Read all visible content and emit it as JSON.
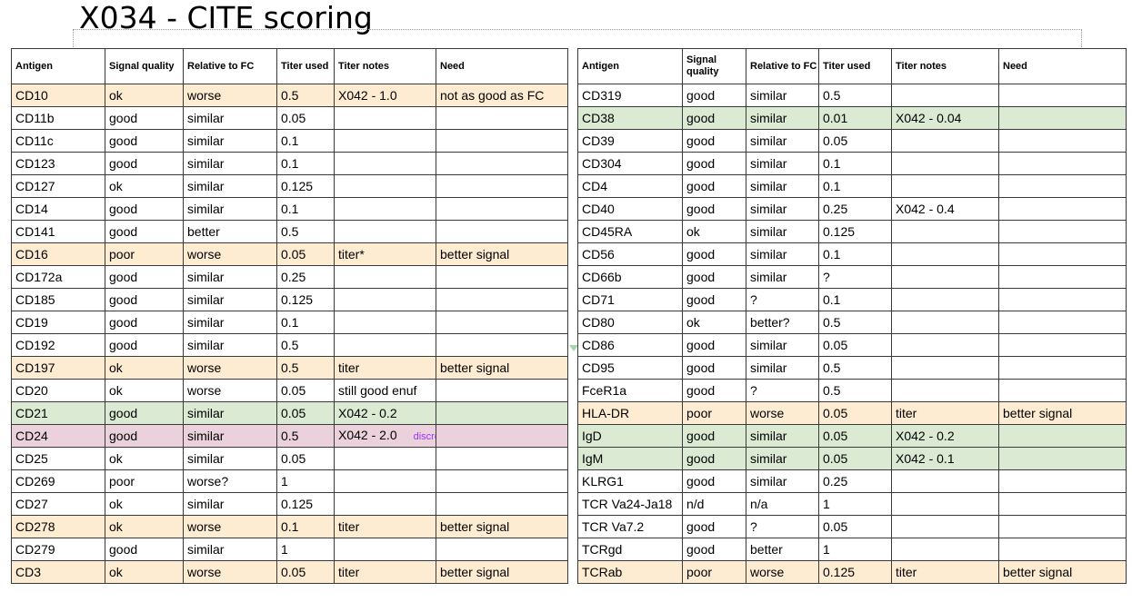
{
  "title": "X034 - CITE scoring",
  "left": {
    "headers": [
      "Antigen",
      "Signal quality",
      "Relative to FC",
      "Titer used",
      "Titer notes",
      "Need"
    ],
    "rows": [
      {
        "antigen": "CD10",
        "signal": "ok",
        "relative": "worse",
        "titer": "0.5",
        "notes": "X042 - 1.0",
        "need": "not as good as FC",
        "hl": "orange"
      },
      {
        "antigen": "CD11b",
        "signal": "good",
        "relative": "similar",
        "titer": "0.05",
        "notes": "",
        "need": "",
        "hl": ""
      },
      {
        "antigen": "CD11c",
        "signal": "good",
        "relative": "similar",
        "titer": "0.1",
        "notes": "",
        "need": "",
        "hl": ""
      },
      {
        "antigen": "CD123",
        "signal": "good",
        "relative": "similar",
        "titer": "0.1",
        "notes": "",
        "need": "",
        "hl": ""
      },
      {
        "antigen": "CD127",
        "signal": "ok",
        "relative": "similar",
        "titer": "0.125",
        "notes": "",
        "need": "",
        "hl": ""
      },
      {
        "antigen": "CD14",
        "signal": "good",
        "relative": "similar",
        "titer": "0.1",
        "notes": "",
        "need": "",
        "hl": ""
      },
      {
        "antigen": "CD141",
        "signal": "good",
        "relative": "better",
        "titer": "0.5",
        "notes": "",
        "need": "",
        "hl": ""
      },
      {
        "antigen": "CD16",
        "signal": "poor",
        "relative": "worse",
        "titer": "0.05",
        "notes": "titer*",
        "need": "better signal",
        "hl": "orange"
      },
      {
        "antigen": "CD172a",
        "signal": "good",
        "relative": "similar",
        "titer": "0.25",
        "notes": "",
        "need": "",
        "hl": ""
      },
      {
        "antigen": "CD185",
        "signal": "good",
        "relative": "similar",
        "titer": "0.125",
        "notes": "",
        "need": "",
        "hl": ""
      },
      {
        "antigen": "CD19",
        "signal": "good",
        "relative": "similar",
        "titer": "0.1",
        "notes": "",
        "need": "",
        "hl": ""
      },
      {
        "antigen": "CD192",
        "signal": "good",
        "relative": "similar",
        "titer": "0.5",
        "notes": "",
        "need": "",
        "hl": ""
      },
      {
        "antigen": "CD197",
        "signal": "ok",
        "relative": "worse",
        "titer": "0.5",
        "notes": "titer",
        "need": "better signal",
        "hl": "orange"
      },
      {
        "antigen": "CD20",
        "signal": "ok",
        "relative": "worse",
        "titer": "0.05",
        "notes": "still good enuf",
        "need": "",
        "hl": ""
      },
      {
        "antigen": "CD21",
        "signal": "good",
        "relative": "similar",
        "titer": "0.05",
        "notes": "X042 - 0.2",
        "need": "",
        "hl": "green"
      },
      {
        "antigen": "CD24",
        "signal": "good",
        "relative": "similar",
        "titer": "0.5",
        "notes": "X042 - 2.0",
        "extra": "discrepancy",
        "need": "",
        "hl": "pink"
      },
      {
        "antigen": "CD25",
        "signal": "ok",
        "relative": "similar",
        "titer": "0.05",
        "notes": "",
        "need": "",
        "hl": ""
      },
      {
        "antigen": "CD269",
        "signal": "poor",
        "relative": "worse?",
        "titer": "1",
        "notes": "",
        "need": "",
        "hl": ""
      },
      {
        "antigen": "CD27",
        "signal": "ok",
        "relative": "similar",
        "titer": "0.125",
        "notes": "",
        "need": "",
        "hl": ""
      },
      {
        "antigen": "CD278",
        "signal": "ok",
        "relative": "worse",
        "titer": "0.1",
        "notes": "titer",
        "need": "better signal",
        "hl": "orange"
      },
      {
        "antigen": "CD279",
        "signal": "good",
        "relative": "similar",
        "titer": "1",
        "notes": "",
        "need": "",
        "hl": ""
      },
      {
        "antigen": "CD3",
        "signal": "ok",
        "relative": "worse",
        "titer": "0.05",
        "notes": "titer",
        "need": "better signal",
        "hl": "orange"
      }
    ]
  },
  "right": {
    "headers": [
      "Antigen",
      "Signal quality",
      "Relative to FC",
      "Titer used",
      "Titer notes",
      "Need"
    ],
    "rows": [
      {
        "antigen": "CD319",
        "signal": "good",
        "relative": "similar",
        "titer": "0.5",
        "notes": "",
        "need": "",
        "hl": ""
      },
      {
        "antigen": "CD38",
        "signal": "good",
        "relative": "similar",
        "titer": "0.01",
        "notes": "X042 - 0.04",
        "need": "",
        "hl": "green"
      },
      {
        "antigen": "CD39",
        "signal": "good",
        "relative": "similar",
        "titer": "0.05",
        "notes": "",
        "need": "",
        "hl": ""
      },
      {
        "antigen": "CD304",
        "signal": "good",
        "relative": "similar",
        "titer": "0.1",
        "notes": "",
        "need": "",
        "hl": ""
      },
      {
        "antigen": "CD4",
        "signal": "good",
        "relative": "similar",
        "titer": "0.1",
        "notes": "",
        "need": "",
        "hl": ""
      },
      {
        "antigen": "CD40",
        "signal": "good",
        "relative": "similar",
        "titer": "0.25",
        "notes": "X042 - 0.4",
        "need": "",
        "hl": ""
      },
      {
        "antigen": "CD45RA",
        "signal": "ok",
        "relative": "similar",
        "titer": "0.125",
        "notes": "",
        "need": "",
        "hl": ""
      },
      {
        "antigen": "CD56",
        "signal": "good",
        "relative": "similar",
        "titer": "0.1",
        "notes": "",
        "need": "",
        "hl": ""
      },
      {
        "antigen": "CD66b",
        "signal": "good",
        "relative": "similar",
        "titer": "?",
        "notes": "",
        "need": "",
        "hl": ""
      },
      {
        "antigen": "CD71",
        "signal": "good",
        "relative": "?",
        "titer": "0.1",
        "notes": "",
        "need": "",
        "hl": ""
      },
      {
        "antigen": "CD80",
        "signal": "ok",
        "relative": "better?",
        "titer": "0.5",
        "notes": "",
        "need": "",
        "hl": ""
      },
      {
        "antigen": "CD86",
        "signal": "good",
        "relative": "similar",
        "titer": "0.05",
        "notes": "",
        "need": "",
        "hl": ""
      },
      {
        "antigen": "CD95",
        "signal": "good",
        "relative": "similar",
        "titer": "0.5",
        "notes": "",
        "need": "",
        "hl": ""
      },
      {
        "antigen": "FceR1a",
        "signal": "good",
        "relative": "?",
        "titer": "0.5",
        "notes": "",
        "need": "",
        "hl": ""
      },
      {
        "antigen": "HLA-DR",
        "signal": "poor",
        "relative": "worse",
        "titer": "0.05",
        "notes": "titer",
        "need": "better signal",
        "hl": "orange"
      },
      {
        "antigen": "IgD",
        "signal": "good",
        "relative": "similar",
        "titer": "0.05",
        "notes": "X042 - 0.2",
        "need": "",
        "hl": "green"
      },
      {
        "antigen": "IgM",
        "signal": "good",
        "relative": "similar",
        "titer": "0.05",
        "notes": "X042 - 0.1",
        "need": "",
        "hl": "green"
      },
      {
        "antigen": "KLRG1",
        "signal": "good",
        "relative": "similar",
        "titer": "0.25",
        "notes": "",
        "need": "",
        "hl": ""
      },
      {
        "antigen": "TCR Va24-Ja18",
        "signal": "n/d",
        "relative": "n/a",
        "titer": "1",
        "notes": "",
        "need": "",
        "hl": ""
      },
      {
        "antigen": "TCR Va7.2",
        "signal": "good",
        "relative": "?",
        "titer": "0.05",
        "notes": "",
        "need": "",
        "hl": ""
      },
      {
        "antigen": "TCRgd",
        "signal": "good",
        "relative": "better",
        "titer": "1",
        "notes": "",
        "need": "",
        "hl": ""
      },
      {
        "antigen": "TCRab",
        "signal": "poor",
        "relative": "worse",
        "titer": "0.125",
        "notes": "titer",
        "need": "better signal",
        "hl": "orange"
      }
    ]
  },
  "colors": {
    "orange": "#fdecd1",
    "green": "#dbead3",
    "pink": "#ead1db",
    "discrepancy_text": "#9933ff"
  }
}
